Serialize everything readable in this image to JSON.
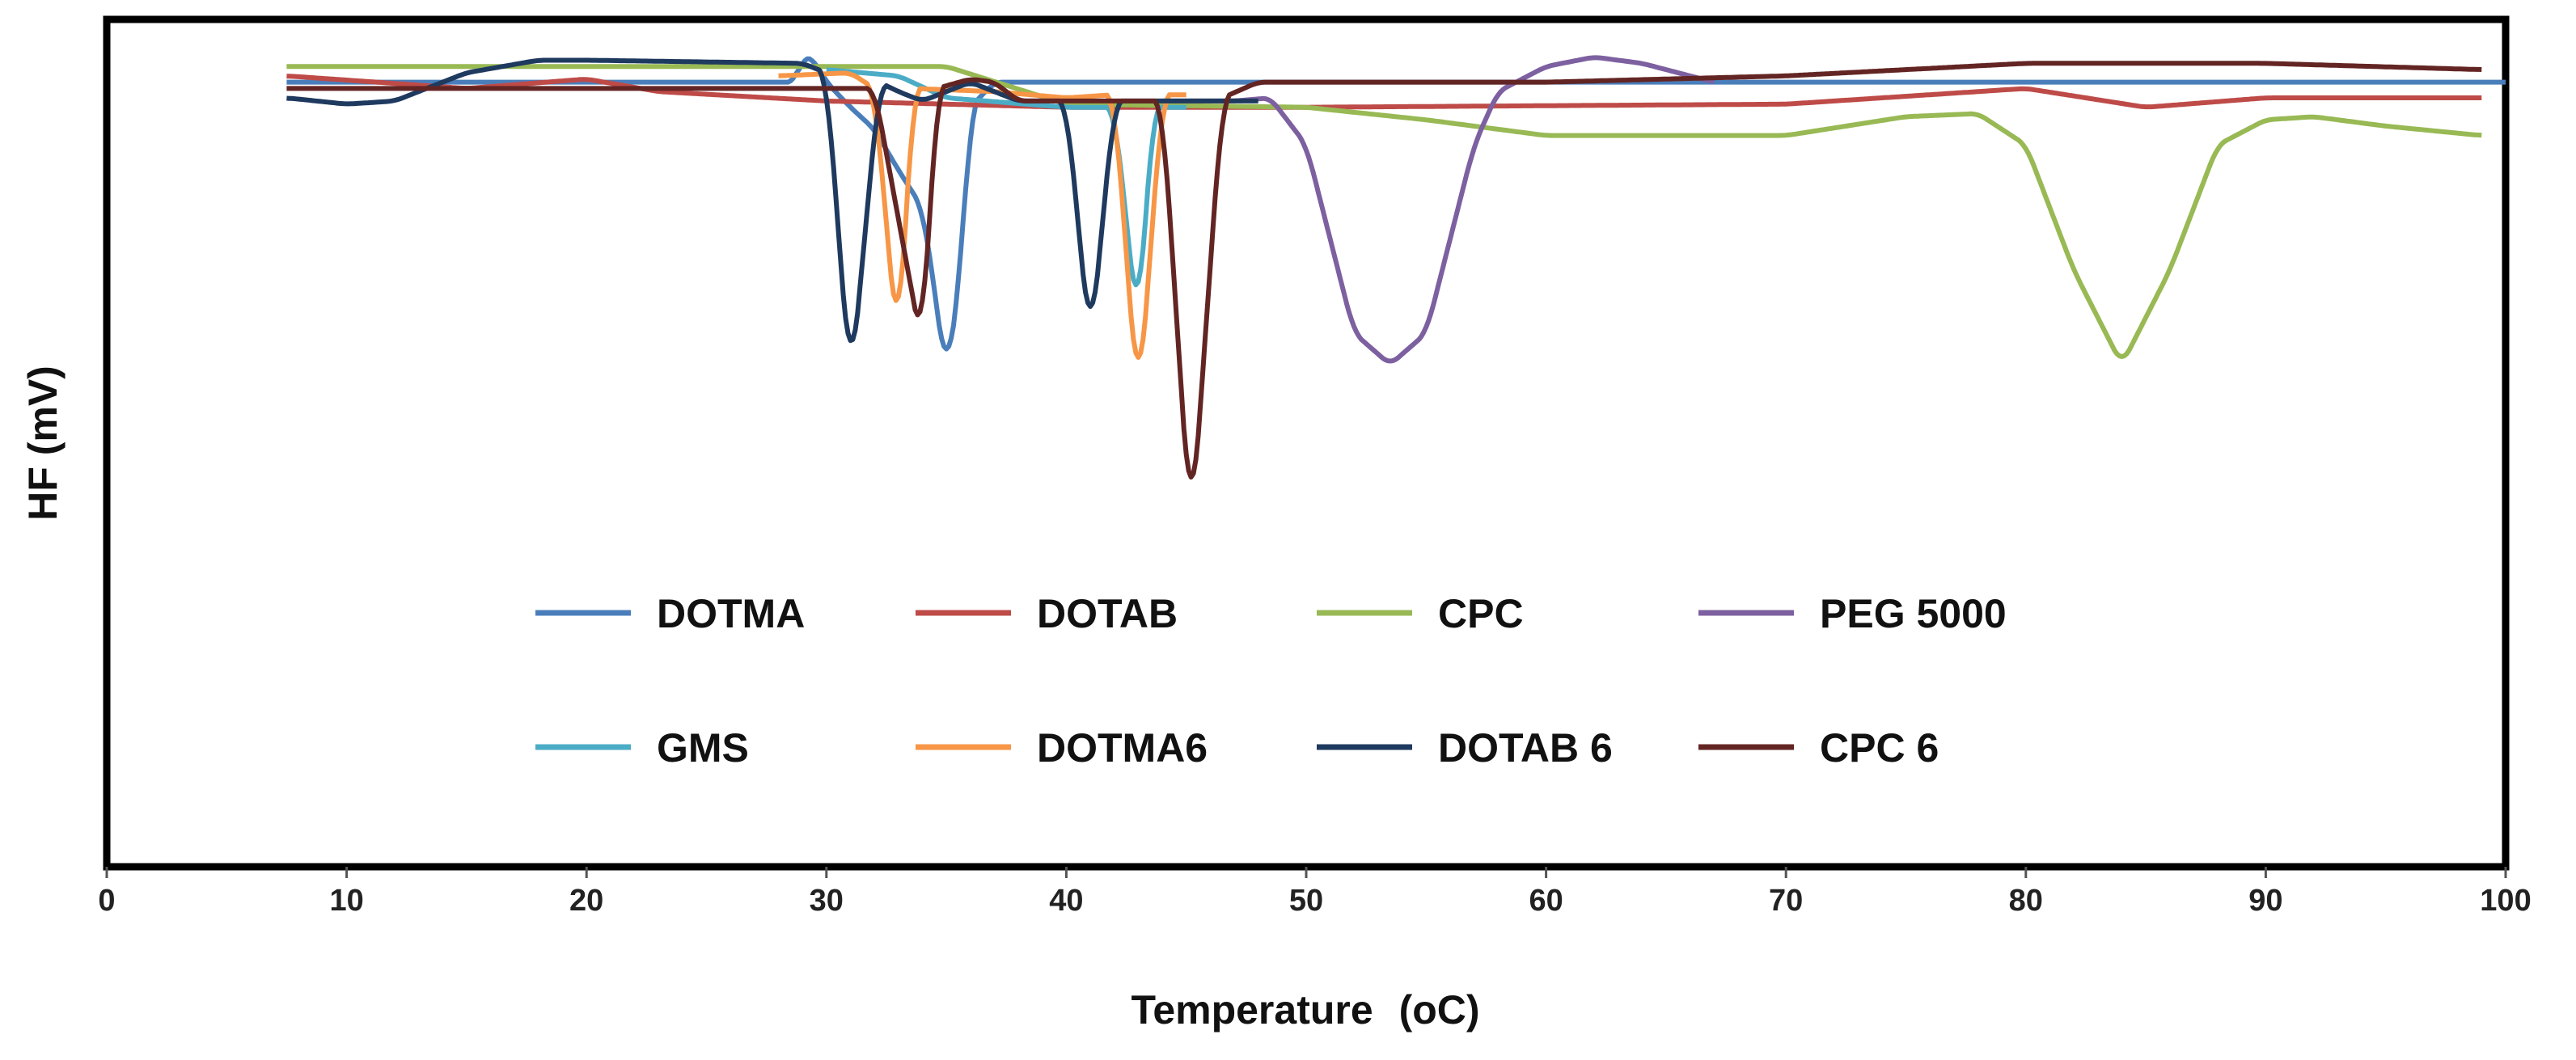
{
  "chart_data": {
    "type": "line",
    "title": "",
    "xlabel": "Temperature",
    "xlabel_unit": "(oC)",
    "ylabel": "HF (mV)",
    "xlim": [
      0,
      100
    ],
    "ylim": [
      -25,
      2
    ],
    "x_ticks": [
      0,
      10,
      20,
      30,
      40,
      50,
      60,
      70,
      80,
      90,
      100
    ],
    "grid": false,
    "legend_position": "inside-lower",
    "series": [
      {
        "name": "DOTMA",
        "color": "#4A7EBB",
        "baseline": [
          [
            7.5,
            0
          ],
          [
            28.7,
            0
          ],
          [
            29,
            0.8
          ],
          [
            29.4,
            0.8
          ],
          [
            30,
            0
          ],
          [
            31,
            -0.8
          ],
          [
            32,
            -1.5
          ],
          [
            33,
            -2.8
          ],
          [
            34,
            -4
          ],
          [
            34.4,
            -6
          ],
          [
            35,
            -9.5
          ],
          [
            35.6,
            -6
          ],
          [
            36,
            -0.8
          ],
          [
            37,
            0
          ],
          [
            100,
            0
          ]
        ],
        "peaks": [
          {
            "center": 35,
            "depth": 9.5
          }
        ]
      },
      {
        "name": "DOTAB",
        "color": "#BE4B48",
        "baseline": [
          [
            7.5,
            0.2
          ],
          [
            15,
            -0.2
          ],
          [
            20,
            0.1
          ],
          [
            23,
            -0.3
          ],
          [
            30,
            -0.6
          ],
          [
            40,
            -0.8
          ],
          [
            50,
            -0.8
          ],
          [
            70,
            -0.7
          ],
          [
            80,
            -0.2
          ],
          [
            85,
            -0.8
          ],
          [
            90,
            -0.5
          ],
          [
            99,
            -0.5
          ]
        ],
        "peaks": []
      },
      {
        "name": "CPC",
        "color": "#98B954",
        "baseline": [
          [
            7.5,
            0.5
          ],
          [
            20,
            0.5
          ],
          [
            30,
            0.5
          ],
          [
            35,
            0.5
          ],
          [
            40,
            -0.7
          ],
          [
            50,
            -0.8
          ],
          [
            55,
            -1.2
          ],
          [
            60,
            -1.7
          ],
          [
            70,
            -1.7
          ],
          [
            75,
            -1.1
          ],
          [
            78,
            -1.0
          ],
          [
            80,
            -2
          ],
          [
            82,
            -6
          ],
          [
            84,
            -9
          ],
          [
            86,
            -6
          ],
          [
            88,
            -2
          ],
          [
            90,
            -1.2
          ],
          [
            92,
            -1.1
          ],
          [
            95,
            -1.4
          ],
          [
            99,
            -1.7
          ]
        ],
        "peaks": [
          {
            "center": 84,
            "depth": 9
          }
        ]
      },
      {
        "name": "PEG 5000",
        "color": "#7D60A0",
        "baseline": [
          [
            44,
            -0.6
          ],
          [
            47,
            -0.6
          ],
          [
            48.5,
            -0.5
          ],
          [
            50,
            -2
          ],
          [
            51,
            -5
          ],
          [
            52,
            -8
          ],
          [
            53.5,
            -9
          ],
          [
            55,
            -8
          ],
          [
            56,
            -5
          ],
          [
            57,
            -2
          ],
          [
            58,
            -0.3
          ],
          [
            60,
            0.5
          ],
          [
            62,
            0.8
          ],
          [
            64,
            0.6
          ],
          [
            66,
            0.2
          ],
          [
            67,
            0
          ]
        ],
        "peaks": [
          {
            "center": 53.5,
            "depth": 9
          }
        ]
      },
      {
        "name": "GMS",
        "color": "#4BACC6",
        "baseline": [
          [
            30,
            0.4
          ],
          [
            33,
            0.2
          ],
          [
            35,
            -0.5
          ],
          [
            40,
            -0.8
          ],
          [
            42,
            -0.8
          ],
          [
            43,
            -8
          ],
          [
            43.6,
            -0.8
          ],
          [
            45,
            -0.8
          ]
        ],
        "peaks": [
          {
            "center": 43,
            "depth": 8
          }
        ]
      },
      {
        "name": "DOTMA6",
        "color": "#F79646",
        "baseline": [
          [
            28,
            0.2
          ],
          [
            31,
            0.3
          ],
          [
            32,
            -0.2
          ],
          [
            33,
            -8.8
          ],
          [
            33.6,
            -0.2
          ],
          [
            37,
            -0.3
          ],
          [
            40,
            -0.5
          ],
          [
            42,
            -0.4
          ],
          [
            43,
            -10.5
          ],
          [
            44,
            -0.4
          ],
          [
            45,
            -0.4
          ]
        ],
        "peaks": [
          {
            "center": 33,
            "depth": 8.5
          },
          {
            "center": 43,
            "depth": 10
          }
        ]
      },
      {
        "name": "DOTAB 6",
        "color": "#1F3A5F",
        "baseline": [
          [
            7.5,
            -0.5
          ],
          [
            10,
            -0.7
          ],
          [
            12,
            -0.6
          ],
          [
            15,
            0.3
          ],
          [
            18,
            0.7
          ],
          [
            20,
            0.7
          ],
          [
            29,
            0.6
          ],
          [
            30,
            0.3
          ],
          [
            31,
            -9.8
          ],
          [
            32.2,
            0
          ],
          [
            33,
            -0.3
          ],
          [
            34,
            -0.6
          ],
          [
            36,
            0
          ],
          [
            38,
            -0.6
          ],
          [
            40,
            -0.6
          ],
          [
            41,
            -8.5
          ],
          [
            42,
            -0.6
          ],
          [
            48,
            -0.6
          ]
        ],
        "peaks": [
          {
            "center": 31,
            "depth": 10
          },
          {
            "center": 41,
            "depth": 8.5
          }
        ]
      },
      {
        "name": "CPC 6",
        "color": "#632523",
        "baseline": [
          [
            7.5,
            -0.2
          ],
          [
            30,
            -0.2
          ],
          [
            32,
            -0.2
          ],
          [
            34,
            -8.5
          ],
          [
            34.6,
            -0.2
          ],
          [
            36,
            0.1
          ],
          [
            37,
            0
          ],
          [
            38,
            -0.6
          ],
          [
            42,
            -0.6
          ],
          [
            44,
            -0.6
          ],
          [
            45.2,
            -14.5
          ],
          [
            46.5,
            -0.5
          ],
          [
            48,
            0
          ],
          [
            60,
            0
          ],
          [
            70,
            0.2
          ],
          [
            80,
            0.6
          ],
          [
            90,
            0.6
          ],
          [
            99,
            0.4
          ]
        ],
        "peaks": [
          {
            "center": 34,
            "depth": 8.5
          },
          {
            "center": 45.2,
            "depth": 14.5
          }
        ]
      }
    ]
  }
}
